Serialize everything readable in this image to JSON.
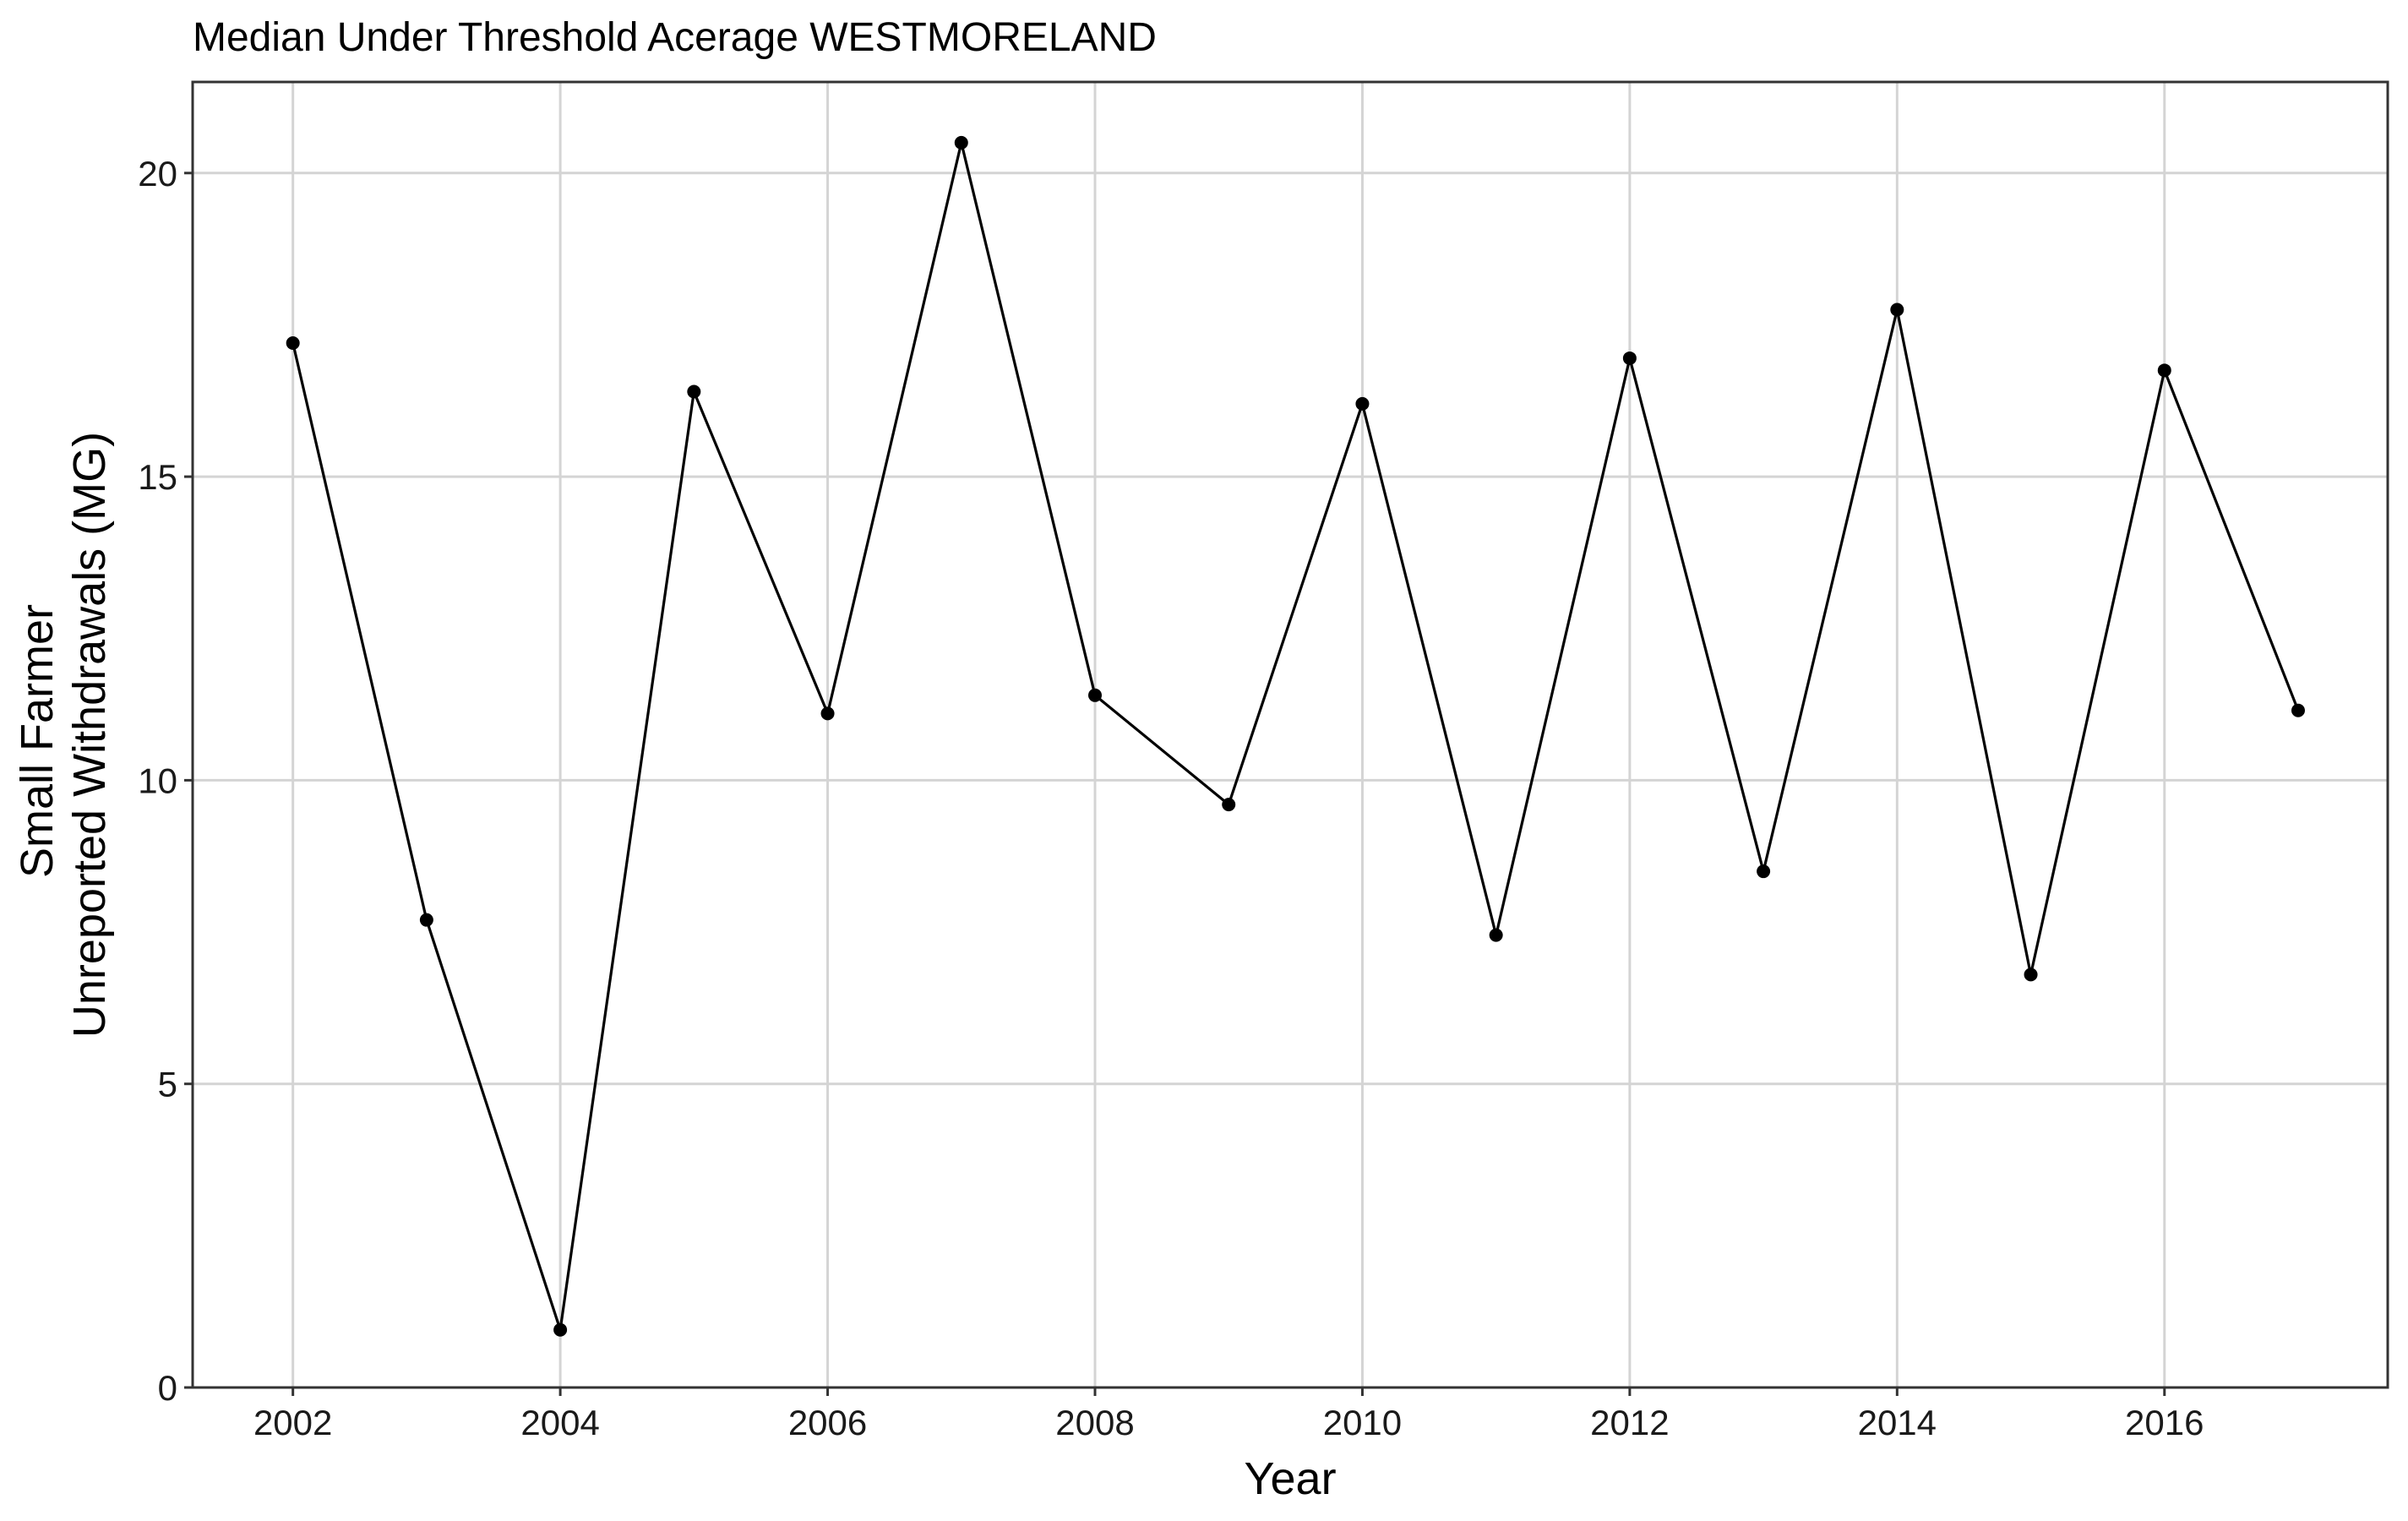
{
  "chart_data": {
    "type": "line",
    "title": "Median Under Threshold Acerage WESTMORELAND",
    "xlabel": "Year",
    "ylabel": [
      "Small Farmer",
      "Unreported Withdrawals (MG)"
    ],
    "xlim": [
      2001.25,
      2017.67
    ],
    "ylim": [
      0,
      21.5
    ],
    "x_ticks": [
      2002,
      2004,
      2006,
      2008,
      2010,
      2012,
      2014,
      2016
    ],
    "x_tick_labels": [
      "2002",
      "2004",
      "2006",
      "2008",
      "2010",
      "2012",
      "2014",
      "2016"
    ],
    "y_ticks": [
      0,
      5,
      10,
      15,
      20
    ],
    "y_tick_labels": [
      "0",
      "5",
      "10",
      "15",
      "20"
    ],
    "grid": true,
    "series": [
      {
        "x": [
          2002,
          2003,
          2004,
          2005,
          2006,
          2007,
          2008,
          2009,
          2010,
          2011,
          2012,
          2013,
          2014,
          2015,
          2016,
          2017
        ],
        "values": [
          17.2,
          7.7,
          0.95,
          16.4,
          11.1,
          20.5,
          11.4,
          9.6,
          16.2,
          7.45,
          16.95,
          8.5,
          17.75,
          6.8,
          16.75,
          11.15
        ]
      }
    ],
    "colors": {
      "line": "#000000",
      "grid": "#d4d4d4",
      "border": "#333333"
    }
  }
}
